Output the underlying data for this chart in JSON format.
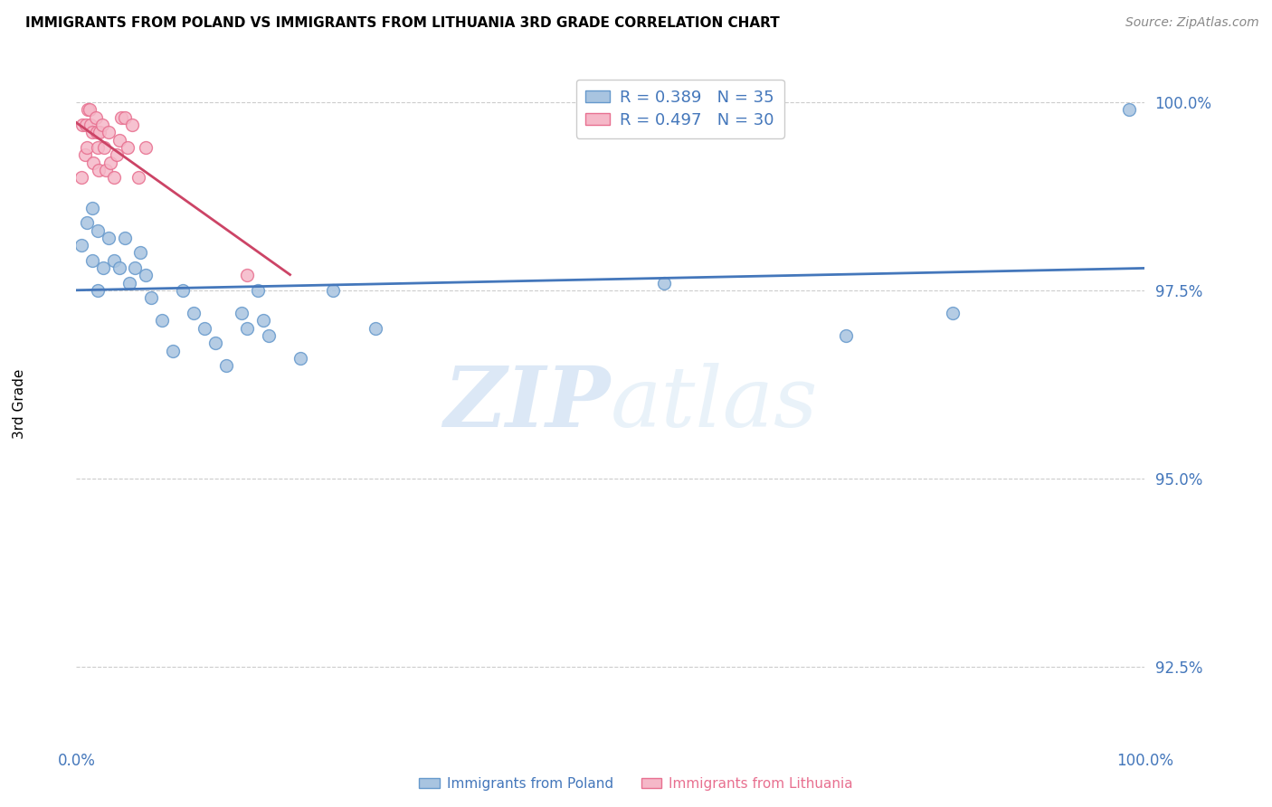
{
  "title": "IMMIGRANTS FROM POLAND VS IMMIGRANTS FROM LITHUANIA 3RD GRADE CORRELATION CHART",
  "source": "Source: ZipAtlas.com",
  "ylabel": "3rd Grade",
  "xlim": [
    0.0,
    1.0
  ],
  "ylim": [
    0.915,
    1.005
  ],
  "yticks": [
    0.925,
    0.95,
    0.975,
    1.0
  ],
  "ytick_labels": [
    "92.5%",
    "95.0%",
    "97.5%",
    "100.0%"
  ],
  "xticks": [
    0.0,
    0.1,
    0.2,
    0.3,
    0.4,
    0.5,
    0.6,
    0.7,
    0.8,
    0.9,
    1.0
  ],
  "xtick_labels": [
    "0.0%",
    "",
    "",
    "",
    "",
    "",
    "",
    "",
    "",
    "",
    "100.0%"
  ],
  "poland_color": "#a8c4e0",
  "poland_edge": "#6699cc",
  "lithuania_color": "#f5b8c8",
  "lithuania_edge": "#e87090",
  "line_poland_color": "#4477bb",
  "line_lithuania_color": "#cc4466",
  "background_color": "#ffffff",
  "grid_color": "#cccccc",
  "R_poland": 0.389,
  "N_poland": 35,
  "R_lithuania": 0.497,
  "N_lithuania": 30,
  "poland_x": [
    0.005,
    0.01,
    0.015,
    0.015,
    0.02,
    0.02,
    0.025,
    0.03,
    0.035,
    0.04,
    0.045,
    0.05,
    0.055,
    0.06,
    0.065,
    0.07,
    0.08,
    0.09,
    0.1,
    0.11,
    0.12,
    0.13,
    0.14,
    0.155,
    0.16,
    0.17,
    0.175,
    0.18,
    0.21,
    0.24,
    0.28,
    0.55,
    0.72,
    0.82,
    0.985
  ],
  "poland_y": [
    0.981,
    0.984,
    0.979,
    0.986,
    0.975,
    0.983,
    0.978,
    0.982,
    0.979,
    0.978,
    0.982,
    0.976,
    0.978,
    0.98,
    0.977,
    0.974,
    0.971,
    0.967,
    0.975,
    0.972,
    0.97,
    0.968,
    0.965,
    0.972,
    0.97,
    0.975,
    0.971,
    0.969,
    0.966,
    0.975,
    0.97,
    0.976,
    0.969,
    0.972,
    0.999
  ],
  "lithuania_x": [
    0.005,
    0.006,
    0.008,
    0.009,
    0.01,
    0.011,
    0.012,
    0.013,
    0.015,
    0.016,
    0.018,
    0.019,
    0.02,
    0.021,
    0.022,
    0.024,
    0.026,
    0.028,
    0.03,
    0.032,
    0.035,
    0.038,
    0.04,
    0.042,
    0.045,
    0.048,
    0.052,
    0.058,
    0.065,
    0.16
  ],
  "lithuania_y": [
    0.99,
    0.997,
    0.993,
    0.997,
    0.994,
    0.999,
    0.999,
    0.997,
    0.996,
    0.992,
    0.998,
    0.996,
    0.994,
    0.991,
    0.996,
    0.997,
    0.994,
    0.991,
    0.996,
    0.992,
    0.99,
    0.993,
    0.995,
    0.998,
    0.998,
    0.994,
    0.997,
    0.99,
    0.994,
    0.977
  ],
  "watermark_zip": "ZIP",
  "watermark_atlas": "atlas",
  "marker_size": 100
}
